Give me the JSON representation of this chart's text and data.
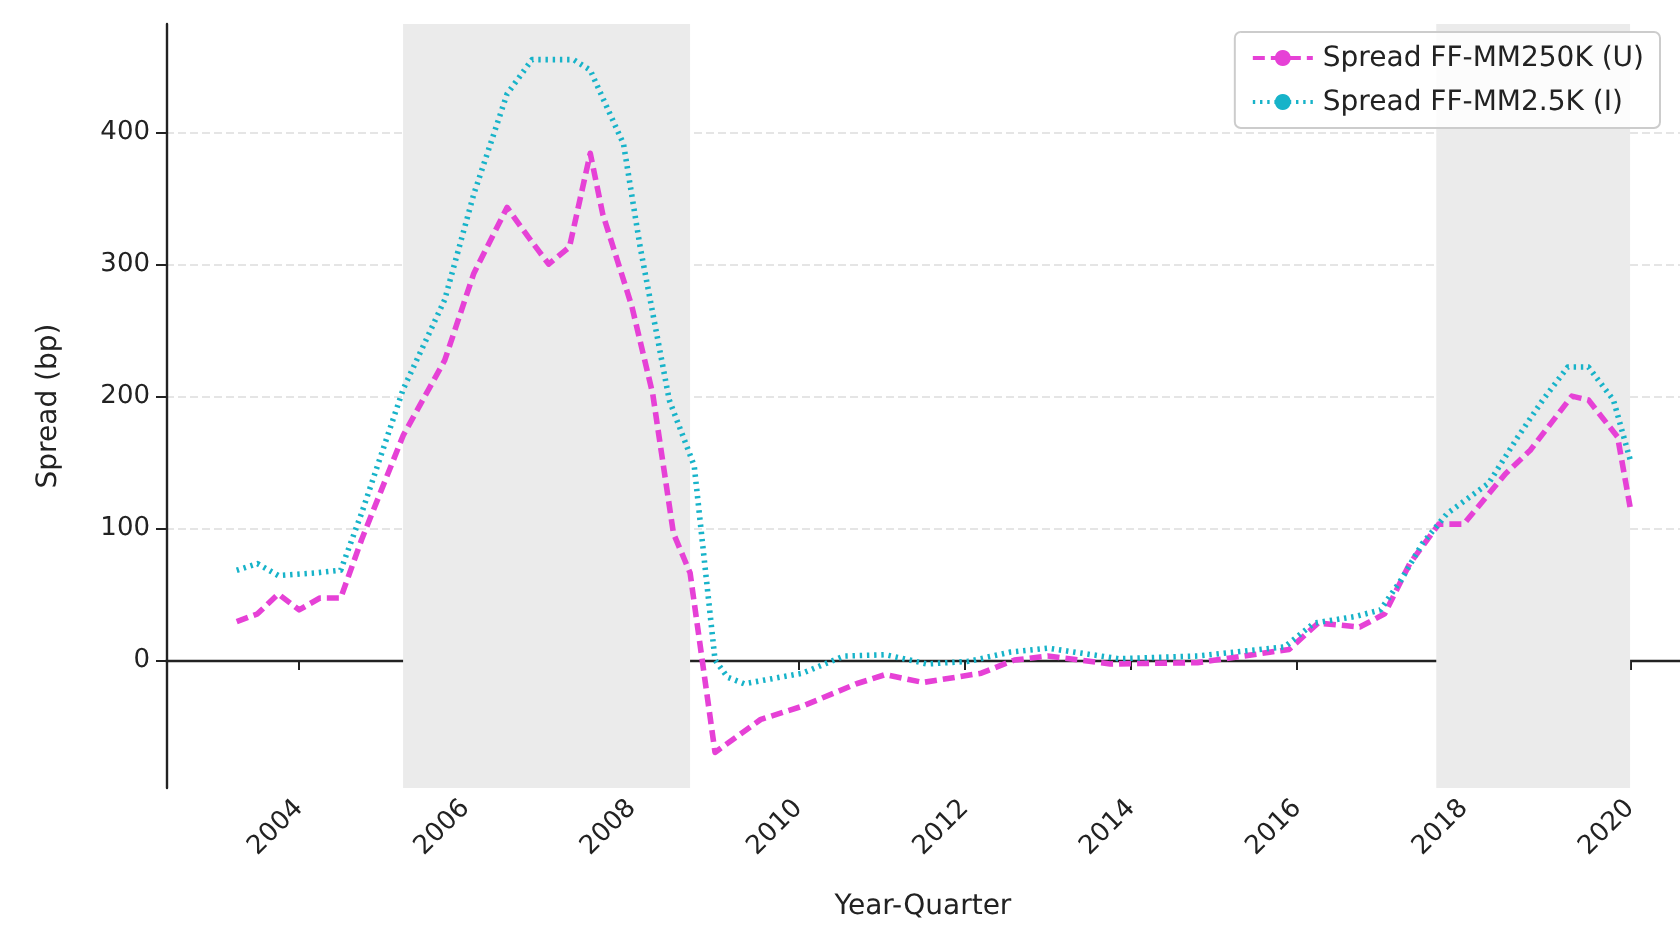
{
  "chart_data": {
    "type": "line",
    "xlabel": "Year-Quarter",
    "ylabel": "Spread (bp)",
    "xlim": [
      2002.4,
      2020.6
    ],
    "xticks": [
      2004,
      2006,
      2008,
      2010,
      2012,
      2014,
      2016,
      2018,
      2020
    ],
    "ylim": [
      -97,
      482
    ],
    "yticks": [
      0,
      100,
      200,
      300,
      400
    ],
    "grid": "y",
    "legend": "top right",
    "marker": "none",
    "bands": [
      {
        "axis": "x",
        "from": 2005.25,
        "to": 2008.7,
        "color": "#ebebeb"
      },
      {
        "axis": "x",
        "from": 2017.67,
        "to": 2020.0,
        "color": "#ebebeb"
      }
    ],
    "series": [
      {
        "name": "Spread FF-MM250K (U)",
        "color": "#e641d6",
        "line_style": "dashed",
        "x": [
          2003.25,
          2003.5,
          2003.75,
          2004.0,
          2004.25,
          2004.5,
          2004.75,
          2005.25,
          2005.75,
          2006.1,
          2006.5,
          2006.75,
          2007.0,
          2007.25,
          2007.5,
          2007.65,
          2008.0,
          2008.25,
          2008.5,
          2008.7,
          2009.0,
          2009.55,
          2010.05,
          2010.7,
          2011.05,
          2011.5,
          2012.2,
          2012.6,
          2013.0,
          2013.75,
          2014.8,
          2015.9,
          2016.25,
          2016.75,
          2017.05,
          2017.35,
          2017.7,
          2018.0,
          2018.5,
          2018.8,
          2019.3,
          2019.5,
          2019.85,
          2020.0
        ],
        "values": [
          29,
          35,
          50,
          38,
          47,
          47,
          91,
          170,
          227,
          293,
          343,
          321,
          300,
          313,
          384,
          338,
          268,
          202,
          96,
          66,
          -70,
          -45,
          -35,
          -18,
          -11,
          -17,
          -10,
          0,
          3,
          -3,
          -2,
          8,
          28,
          25,
          35,
          73,
          103,
          103,
          141,
          159,
          200,
          197,
          169,
          116
        ]
      },
      {
        "name": "Spread FF-MM2.5K (I)",
        "color": "#17b3c9",
        "line_style": "dotted",
        "x": [
          2003.25,
          2003.5,
          2003.75,
          2004.2,
          2004.5,
          2004.75,
          2005.25,
          2005.75,
          2006.1,
          2006.5,
          2006.8,
          2007.3,
          2007.5,
          2007.9,
          2008.1,
          2008.45,
          2008.75,
          2009.0,
          2009.15,
          2009.35,
          2010.05,
          2010.55,
          2011.05,
          2011.55,
          2012.05,
          2012.55,
          2013.0,
          2013.85,
          2014.8,
          2015.85,
          2016.2,
          2016.7,
          2017.0,
          2017.25,
          2017.5,
          2017.8,
          2018.3,
          2018.65,
          2018.95,
          2019.25,
          2019.5,
          2019.8,
          2020.0
        ],
        "values": [
          68,
          73,
          64,
          66,
          68,
          111,
          205,
          273,
          353,
          429,
          455,
          455,
          447,
          391,
          313,
          197,
          147,
          0,
          -13,
          -18,
          -10,
          3,
          4,
          -3,
          -1,
          6,
          9,
          1,
          3,
          10,
          28,
          33,
          38,
          61,
          88,
          111,
          134,
          169,
          197,
          222,
          222,
          197,
          152
        ]
      }
    ]
  }
}
